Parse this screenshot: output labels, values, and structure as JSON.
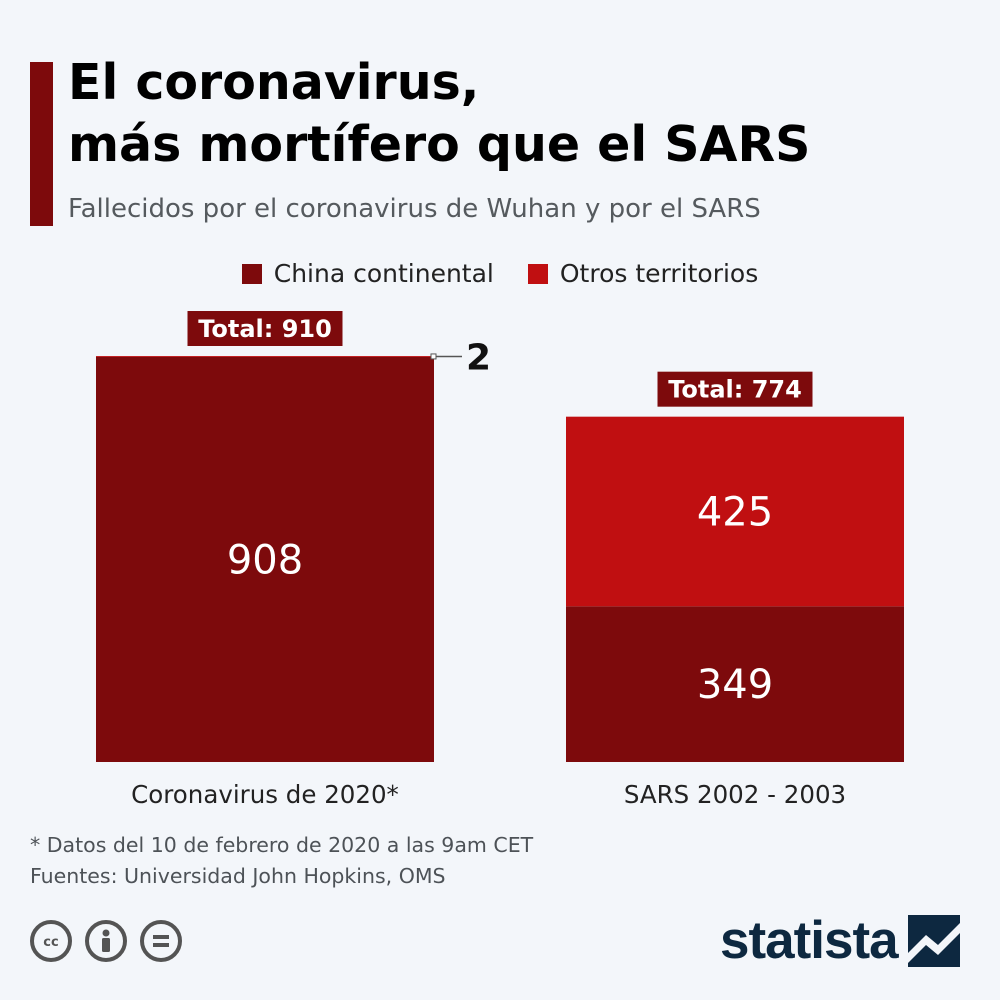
{
  "title_line1": "El coronavirus,",
  "title_line2": "más mortífero que el SARS",
  "subtitle": "Fallecidos por el coronavirus de Wuhan y por el SARS",
  "footnote_line1": "* Datos del 10 de febrero de 2020 a las 9am CET",
  "footnote_line2": "Fuentes: Universidad John Hopkins, OMS",
  "logo_text": "statista",
  "colors": {
    "china": "#7d0a0c",
    "otros": "#c00f11",
    "total_label_bg": "#7d0a0c",
    "text_dark": "#222222"
  },
  "icons": [
    "cc-icon",
    "person-icon",
    "equals-icon"
  ],
  "chart_data": {
    "type": "bar",
    "stacked": true,
    "categories": [
      "Coronavirus de 2020*",
      "SARS 2002 - 2003"
    ],
    "series": [
      {
        "name": "China continental",
        "values": [
          908,
          349
        ]
      },
      {
        "name": "Otros territorios",
        "values": [
          2,
          425
        ]
      }
    ],
    "totals": [
      910,
      774
    ],
    "total_labels": [
      "Total: 910",
      "Total: 774"
    ],
    "segment_labels": {
      "China continental": [
        "908",
        "349"
      ],
      "Otros territorios": [
        "2",
        "425"
      ]
    },
    "legend_placement": "top-center",
    "grid": false,
    "ylim": [
      0,
      910
    ]
  }
}
